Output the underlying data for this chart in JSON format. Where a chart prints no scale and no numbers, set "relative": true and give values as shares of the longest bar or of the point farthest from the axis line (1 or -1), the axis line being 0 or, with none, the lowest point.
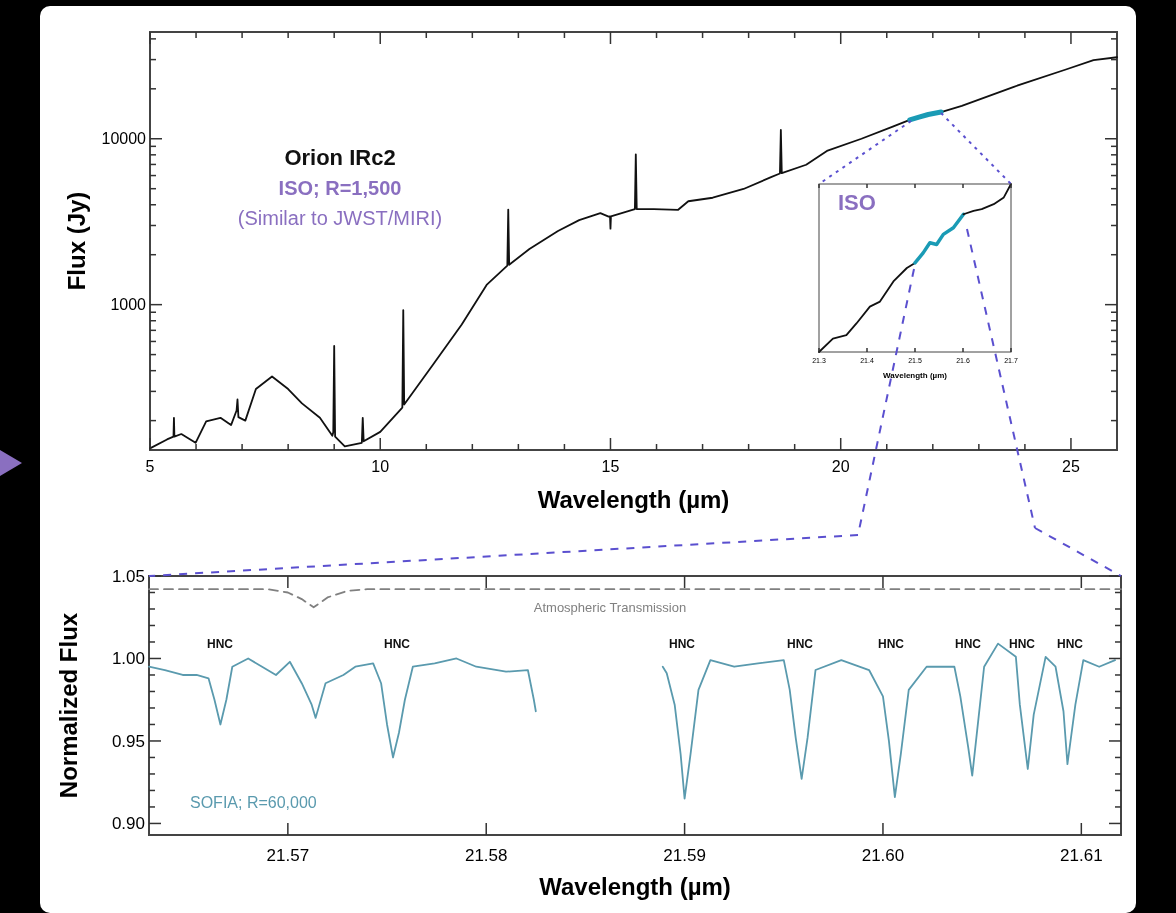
{
  "chart_data": [
    {
      "type": "line",
      "xlabel": "Wavelength (µm)",
      "ylabel": "Flux (Jy)",
      "log": "y",
      "xlim": [
        5,
        26
      ],
      "ylim": [
        133,
        44000
      ],
      "xticks": [
        5,
        {
          "value": 6,
          "label": null
        },
        {
          "value": 7,
          "label": null
        },
        {
          "value": 8,
          "label": null
        },
        {
          "value": 9,
          "label": null
        },
        10,
        {
          "value": 11,
          "label": null
        },
        {
          "value": 12,
          "label": null
        },
        {
          "value": 13,
          "label": null
        },
        {
          "value": 14,
          "label": null
        },
        15,
        {
          "value": 16,
          "label": null
        },
        {
          "value": 17,
          "label": null
        },
        {
          "value": 18,
          "label": null
        },
        {
          "value": 19,
          "label": null
        },
        20,
        {
          "value": 21,
          "label": null
        },
        {
          "value": 22,
          "label": null
        },
        {
          "value": 23,
          "label": null
        },
        {
          "value": 24,
          "label": null
        },
        25
      ],
      "yticks": [
        {
          "value": 200,
          "label": null
        },
        {
          "value": 300,
          "label": null
        },
        {
          "value": 400,
          "label": null
        },
        {
          "value": 500,
          "label": null
        },
        {
          "value": 600,
          "label": null
        },
        {
          "value": 700,
          "label": null
        },
        {
          "value": 800,
          "label": null
        },
        {
          "value": 900,
          "label": null
        },
        1000,
        {
          "value": 2000,
          "label": null
        },
        {
          "value": 3000,
          "label": null
        },
        {
          "value": 4000,
          "label": null
        },
        {
          "value": 5000,
          "label": null
        },
        {
          "value": 6000,
          "label": null
        },
        {
          "value": 7000,
          "label": null
        },
        {
          "value": 8000,
          "label": null
        },
        {
          "value": 9000,
          "label": null
        },
        10000,
        {
          "value": 20000,
          "label": null
        },
        {
          "value": 30000,
          "label": null
        },
        {
          "value": 40000,
          "label": null
        }
      ],
      "annotations": [
        "Orion IRc2",
        "ISO; R=1,500",
        "(Similar to JWST/MIRI)"
      ],
      "series": [
        {
          "color": "#111111",
          "x": [
            5.0,
            5.37,
            5.51,
            5.52,
            5.53,
            5.68,
            5.99,
            6.22,
            6.53,
            6.76,
            6.88,
            6.9,
            6.92,
            7.07,
            7.3,
            7.65,
            8.0,
            8.3,
            8.69,
            8.96,
            8.98,
            9.0,
            9.02,
            9.23,
            9.6,
            9.62,
            9.64,
            10.0,
            10.46,
            10.48,
            10.5,
            10.52,
            11.16,
            11.77,
            12.31,
            12.76,
            12.78,
            12.8,
            13.24,
            13.86,
            14.32,
            14.78,
            14.96,
            14.99,
            15.0,
            15.01,
            15.53,
            15.55,
            15.57,
            15.94,
            16.47,
            16.69,
            17.22,
            17.89,
            18.5,
            18.68,
            18.7,
            18.72,
            19.25,
            19.7,
            20.45,
            21.13,
            21.5,
            22.18,
            22.63,
            23.76,
            24.89,
            25.49,
            26.0
          ],
          "values": [
            136,
            154,
            160,
            208,
            160,
            166,
            147,
            198,
            208,
            188,
            230,
            268,
            210,
            200,
            310,
            369,
            310,
            254,
            208,
            162,
            170,
            564,
            160,
            140,
            147,
            208,
            150,
            171,
            236,
            240,
            928,
            250,
            440,
            760,
            1315,
            1720,
            3740,
            1740,
            2165,
            2780,
            3230,
            3560,
            3390,
            3400,
            2870,
            3410,
            3760,
            8050,
            3770,
            3770,
            3730,
            4200,
            4410,
            4980,
            5890,
            6170,
            11300,
            6200,
            6970,
            8450,
            10000,
            11830,
            13000,
            14480,
            15800,
            20570,
            26150,
            29800,
            31000
          ]
        },
        {
          "color": "#1a9bb5",
          "x": [
            21.5,
            21.7,
            21.9,
            22.18
          ],
          "values": [
            13000,
            13500,
            14000,
            14480
          ]
        }
      ]
    },
    {
      "type": "line",
      "relative": true,
      "xlabel": "Wavelength (µm)",
      "xlim": [
        21.3,
        21.7
      ],
      "xticks": [
        21.3,
        21.4,
        21.5,
        21.6,
        21.7
      ],
      "annotations": [
        "ISO"
      ],
      "series": [
        {
          "color": "#111111",
          "x": [
            21.3,
            21.329,
            21.357,
            21.378,
            21.406,
            21.427,
            21.455,
            21.483,
            21.5
          ],
          "values": [
            0,
            0.08,
            0.1,
            0.17,
            0.27,
            0.3,
            0.42,
            0.5,
            0.53
          ]
        },
        {
          "color": "#1a9bb5",
          "x": [
            21.5,
            21.517,
            21.531,
            21.545,
            21.559,
            21.58,
            21.601
          ],
          "values": [
            0.53,
            0.59,
            0.65,
            0.64,
            0.7,
            0.74,
            0.82
          ]
        },
        {
          "color": "#111111",
          "x": [
            21.601,
            21.622,
            21.639,
            21.664,
            21.685,
            21.7
          ],
          "values": [
            0.82,
            0.84,
            0.85,
            0.88,
            0.92,
            1
          ]
        }
      ]
    },
    {
      "type": "line",
      "xlabel": "Wavelength (µm)",
      "ylabel": "Normalized Flux",
      "xlim": [
        21.563,
        21.612
      ],
      "ylim": [
        0.893,
        1.05
      ],
      "xticks": [
        21.57,
        21.58,
        21.59,
        {
          "value": 21.6,
          "label": "21.60"
        },
        21.61
      ],
      "yticks": [
        {
          "value": 0.9,
          "label": "0.90"
        },
        {
          "value": 0.91,
          "label": null
        },
        {
          "value": 0.92,
          "label": null
        },
        {
          "value": 0.93,
          "label": null
        },
        {
          "value": 0.94,
          "label": null
        },
        0.95,
        {
          "value": 0.96,
          "label": null
        },
        {
          "value": 0.97,
          "label": null
        },
        {
          "value": 0.98,
          "label": null
        },
        {
          "value": 0.99,
          "label": null
        },
        {
          "value": 1.0,
          "label": "1.00"
        },
        {
          "value": 1.01,
          "label": null
        },
        {
          "value": 1.02,
          "label": null
        },
        {
          "value": 1.03,
          "label": null
        },
        {
          "value": 1.04,
          "label": null
        },
        1.05
      ],
      "annotations": [
        "HNC",
        "HNC",
        "HNC",
        "HNC",
        "HNC",
        "HNC",
        "HNC",
        "HNC"
      ],
      "series": [
        {
          "name": "SOFIA; R=60,000",
          "color": "#5a9aae",
          "x": [
            21.563,
            21.5638,
            21.5647,
            21.5654,
            21.566,
            21.5663,
            21.5666,
            21.5669,
            21.5672,
            21.568,
            21.5687,
            21.5694,
            21.5701,
            21.5707,
            21.5712,
            21.5714,
            21.5719,
            21.5728,
            21.5734,
            21.5743,
            21.5747,
            21.575,
            21.5753,
            21.5756,
            21.5759,
            21.5763,
            21.5774,
            21.5785,
            21.5795,
            21.581,
            21.5821,
            21.5824,
            21.5825
          ],
          "values": [
            0.995,
            0.993,
            0.99,
            0.99,
            0.988,
            0.975,
            0.96,
            0.975,
            0.995,
            1.0,
            0.995,
            0.99,
            0.998,
            0.985,
            0.972,
            0.964,
            0.985,
            0.99,
            0.995,
            0.997,
            0.985,
            0.96,
            0.94,
            0.955,
            0.975,
            0.995,
            0.997,
            1.0,
            0.995,
            0.992,
            0.993,
            0.975,
            0.968
          ]
        },
        {
          "color": "#5a9aae",
          "x": [
            21.5889,
            21.5891,
            21.5895,
            21.5898,
            21.59,
            21.5903,
            21.5907,
            21.5913,
            21.5925,
            21.5937,
            21.595,
            21.5953,
            21.5956,
            21.5959,
            21.5962,
            21.5966,
            21.5979,
            21.5993,
            21.6,
            21.6003,
            21.6006,
            21.6009,
            21.6013,
            21.6022,
            21.6036,
            21.6039,
            21.6043,
            21.6045,
            21.6048,
            21.6051,
            21.6058,
            21.6067,
            21.6069,
            21.6073,
            21.6076,
            21.6082,
            21.6087,
            21.6091,
            21.6093,
            21.6097,
            21.6101,
            21.6109,
            21.6117
          ],
          "values": [
            0.995,
            0.991,
            0.972,
            0.942,
            0.915,
            0.942,
            0.981,
            0.999,
            0.995,
            0.997,
            0.999,
            0.981,
            0.952,
            0.927,
            0.952,
            0.993,
            0.999,
            0.993,
            0.977,
            0.95,
            0.916,
            0.942,
            0.981,
            0.995,
            0.995,
            0.977,
            0.946,
            0.929,
            0.962,
            0.995,
            1.009,
            1.001,
            0.972,
            0.933,
            0.966,
            1.001,
            0.995,
            0.968,
            0.936,
            0.972,
            0.999,
            0.995,
            0.999
          ]
        },
        {
          "name": "Atmospheric Transmission",
          "color": "#808080",
          "line_style": "dashed",
          "x": [
            21.563,
            21.569,
            21.57,
            21.5707,
            21.5713,
            21.572,
            21.573,
            21.574,
            21.612
          ],
          "values": [
            1.042,
            1.042,
            1.04,
            1.036,
            1.031,
            1.037,
            1.041,
            1.042,
            1.042
          ]
        }
      ]
    }
  ]
}
